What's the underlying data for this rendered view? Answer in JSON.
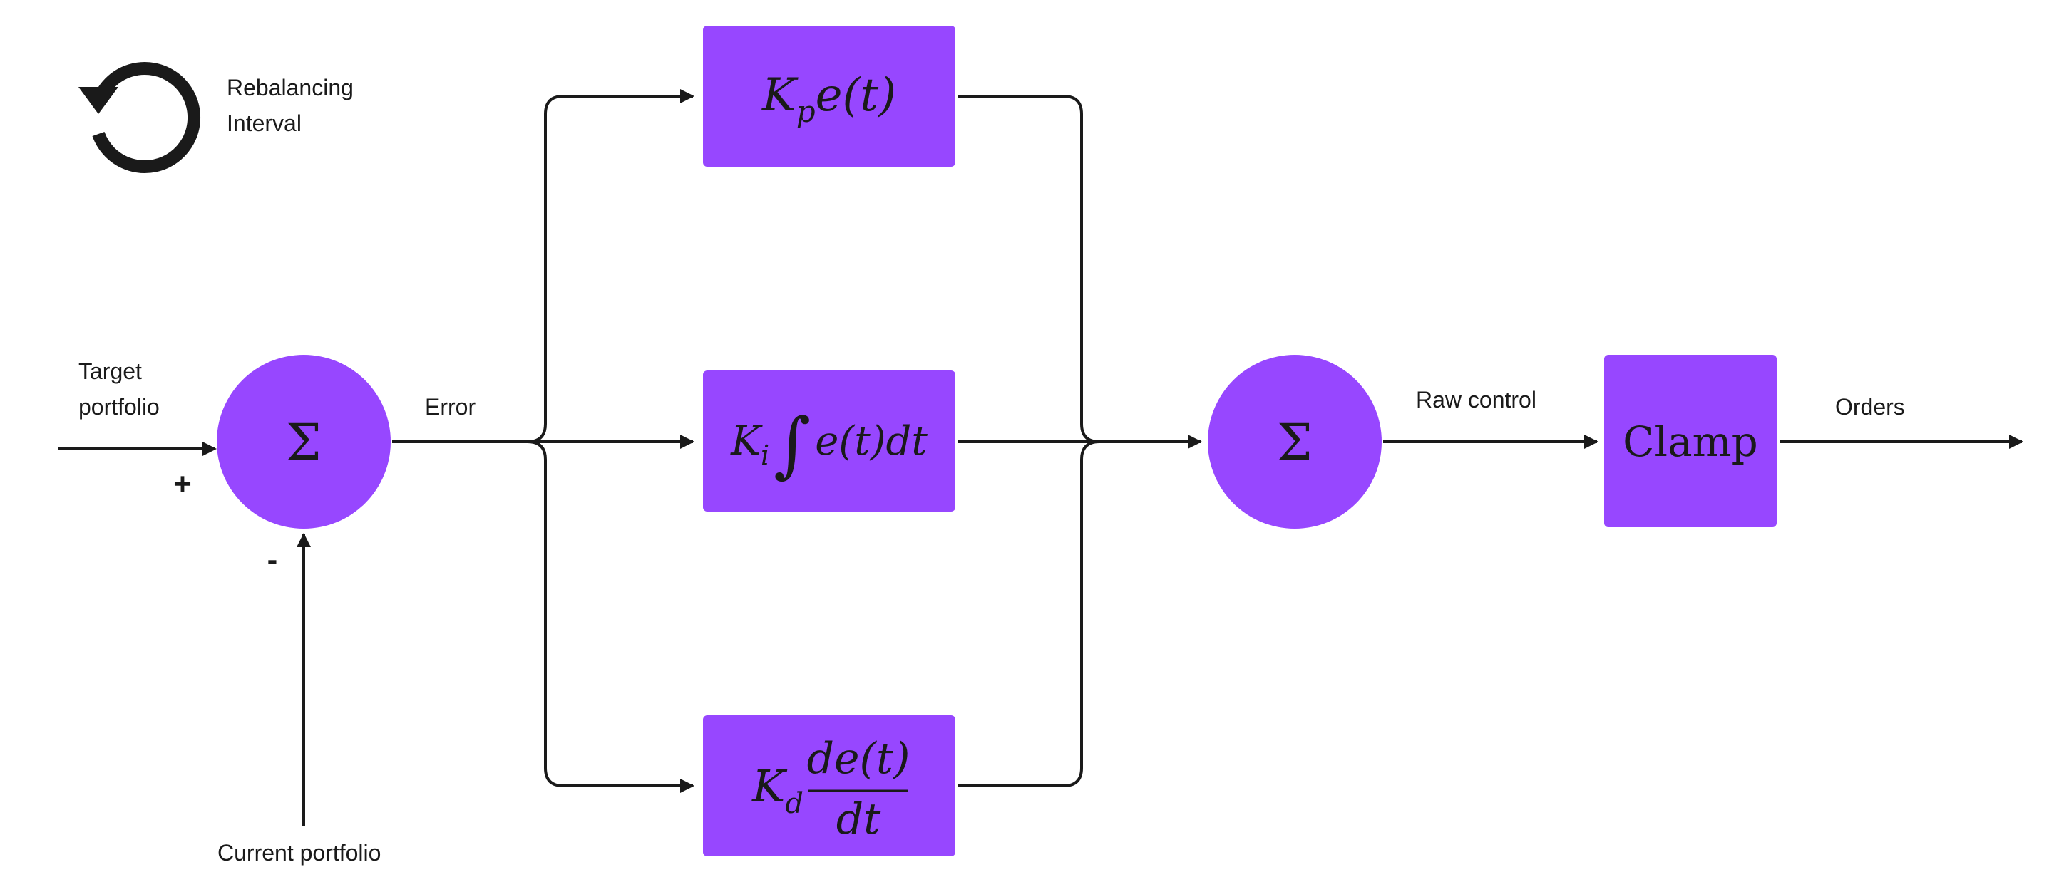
{
  "colors": {
    "block": "#9747FF",
    "ink": "#1a1a1a",
    "background": "#ffffff"
  },
  "legend": {
    "icon": "refresh-icon",
    "line1": "Rebalancing",
    "line2": "Interval"
  },
  "inputs": {
    "target_line1": "Target",
    "target_line2": "portfolio",
    "current": "Current portfolio",
    "plus_sign": "+",
    "minus_sign": "-"
  },
  "summer_symbol": "Σ",
  "signals": {
    "error": "Error",
    "raw_control": "Raw control",
    "orders": "Orders"
  },
  "blocks": {
    "proportional": {
      "K": "K",
      "sub": "p",
      "expr": "e(t)"
    },
    "integral": {
      "K": "K",
      "sub": "i",
      "integral_sign": "∫",
      "expr": "e(t)dt"
    },
    "derivative": {
      "K": "K",
      "sub": "d",
      "numerator": "de(t)",
      "denominator": "dt"
    },
    "clamp": "Clamp"
  }
}
